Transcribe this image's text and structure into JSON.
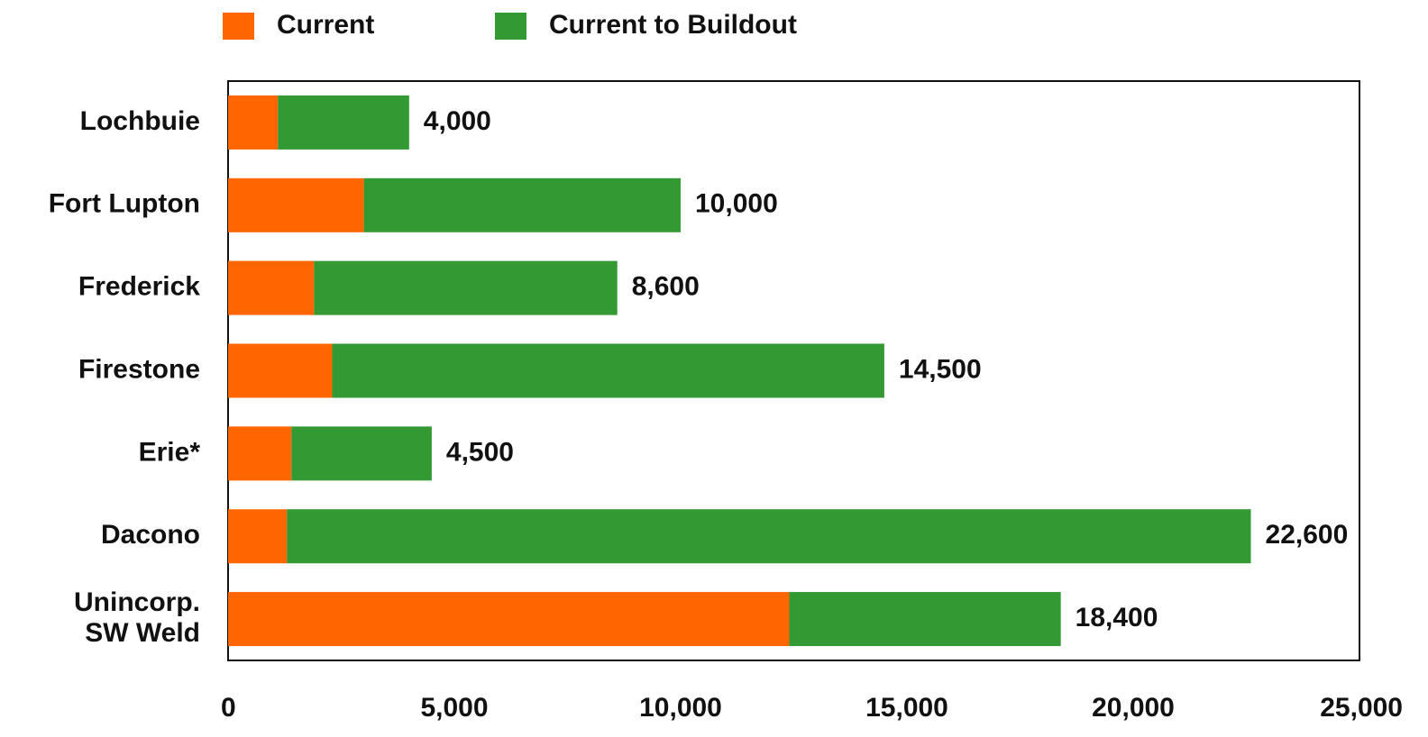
{
  "chart_data": {
    "type": "stacked-barh",
    "categories": [
      "Lochbuie",
      "Fort Lupton",
      "Frederick",
      "Firestone",
      "Erie*",
      "Dacono",
      "Unincorp.\nSW Weld"
    ],
    "series": [
      {
        "name": "Current",
        "color": "#ff6600",
        "values": [
          1100,
          3000,
          1900,
          2300,
          1400,
          1300,
          12400
        ]
      },
      {
        "name": "Current to Buildout",
        "color": "#339933",
        "values": [
          2900,
          7000,
          6700,
          12200,
          3100,
          21300,
          6000
        ]
      }
    ],
    "totals": [
      4000,
      10000,
      8600,
      14500,
      4500,
      22600,
      18400
    ],
    "total_labels": [
      "4,000",
      "10,000",
      "8,600",
      "14,500",
      "4,500",
      "22,600",
      "18,400"
    ],
    "xlim": [
      0,
      25000
    ],
    "xticks": [
      0,
      {
        "value": 5000,
        "label": "5,000"
      },
      {
        "value": 10000,
        "label": "10,000"
      },
      {
        "value": 15000,
        "label": "15,000"
      },
      {
        "value": 20000,
        "label": "20,000"
      },
      {
        "value": 25000,
        "label": "25,000"
      }
    ],
    "grid": false,
    "legend": "top"
  }
}
